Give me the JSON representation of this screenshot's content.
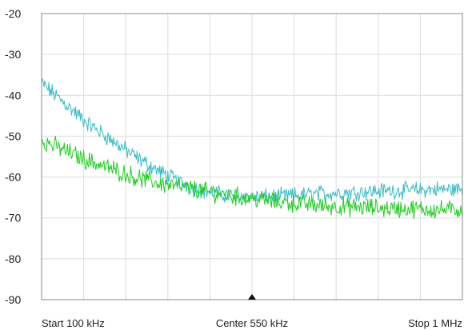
{
  "chart_data": {
    "type": "line",
    "title": "",
    "xlabel": "",
    "ylabel": "",
    "xlim": [
      100,
      1000
    ],
    "ylim": [
      -90,
      -20
    ],
    "x_unit": "kHz",
    "grid": true,
    "y_ticks": [
      "-20",
      "-30",
      "-40",
      "-50",
      "-60",
      "-70",
      "-80",
      "-90"
    ],
    "x_tick_labels": {
      "start": "Start 100 kHz",
      "center": "Center 550 kHz",
      "stop": "Stop 1 MHz"
    },
    "marker": {
      "type": "triangle",
      "x": 550
    },
    "series": [
      {
        "color": "#39bcc4",
        "noise": 1.6,
        "x": [
          100,
          150,
          200,
          250,
          300,
          350,
          400,
          450,
          500,
          550,
          600,
          650,
          700,
          750,
          800,
          850,
          900,
          950,
          1000
        ],
        "values": [
          -37,
          -42,
          -47,
          -51,
          -55,
          -58.5,
          -61.5,
          -63.5,
          -64.5,
          -65,
          -64.8,
          -64.5,
          -64,
          -63.8,
          -63.5,
          -63.3,
          -63.2,
          -63,
          -63
        ]
      },
      {
        "color": "#22cc22",
        "noise": 1.8,
        "x": [
          100,
          150,
          200,
          250,
          300,
          350,
          400,
          450,
          500,
          550,
          600,
          650,
          700,
          750,
          800,
          850,
          900,
          950,
          1000
        ],
        "values": [
          -51,
          -53.5,
          -56,
          -58,
          -60,
          -61.5,
          -62.5,
          -63.5,
          -64.5,
          -65.2,
          -66,
          -66.5,
          -67,
          -67.3,
          -67.5,
          -67.7,
          -67.8,
          -68,
          -68
        ]
      }
    ]
  }
}
